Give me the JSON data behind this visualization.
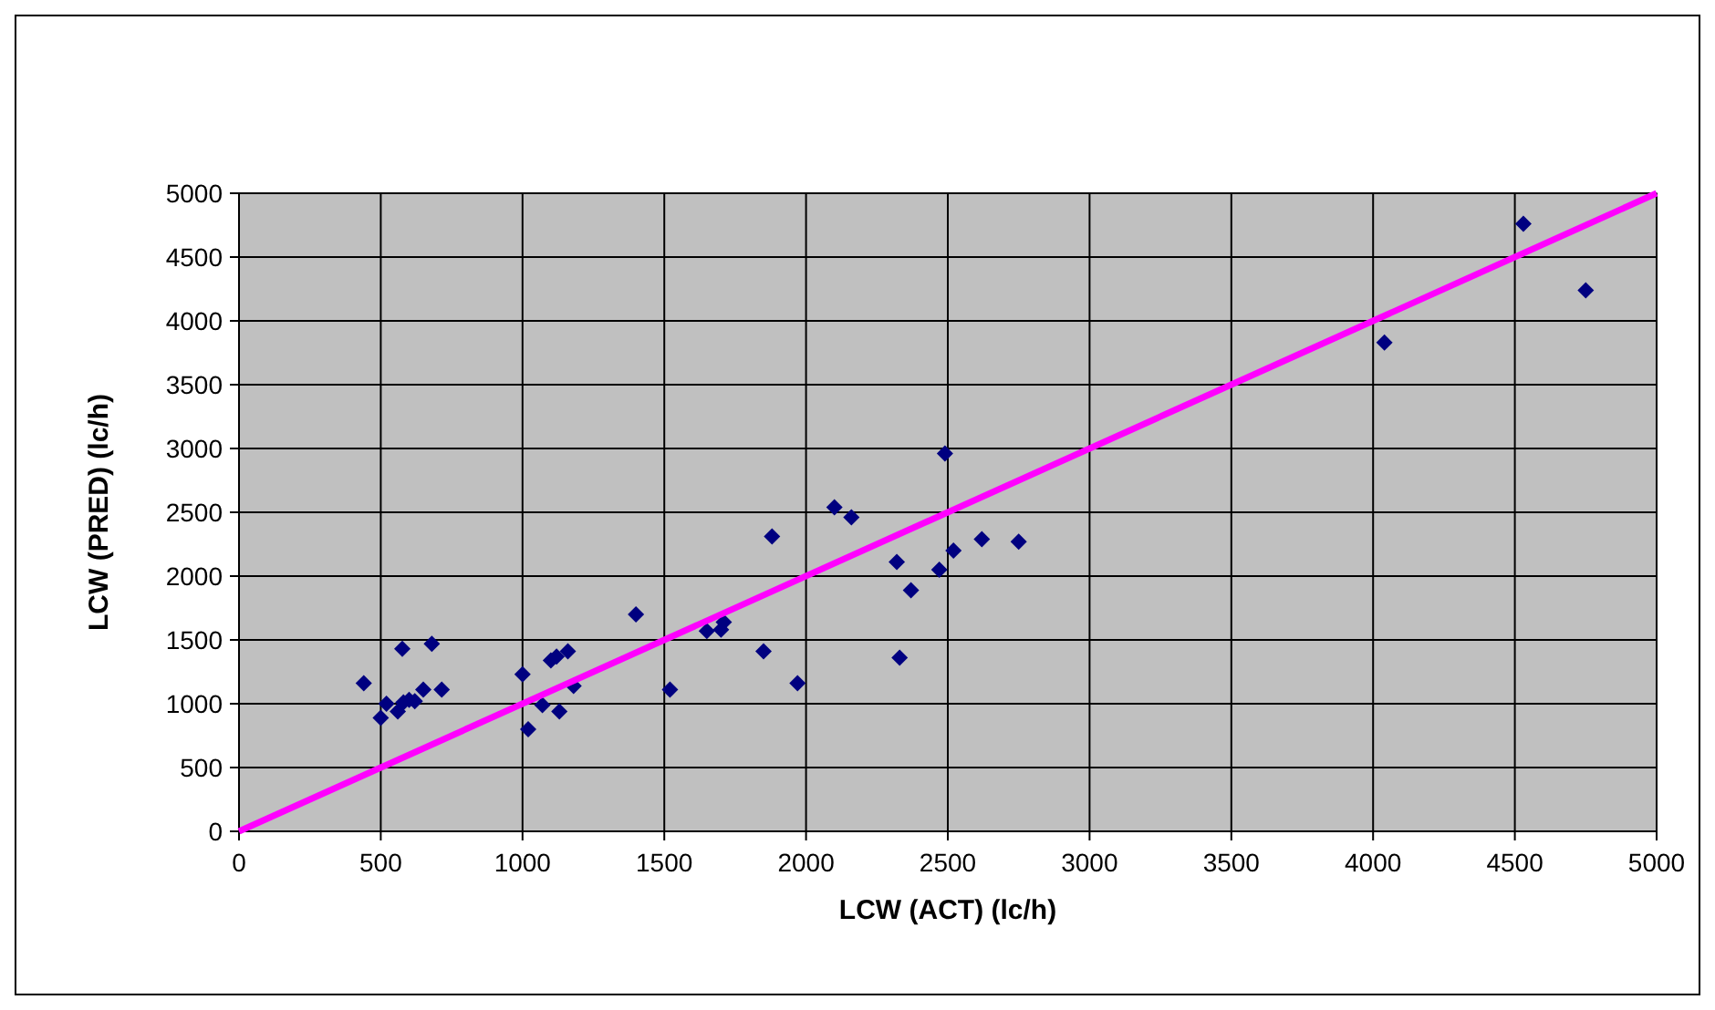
{
  "chart_data": {
    "type": "scatter",
    "xlabel": "LCW (ACT)   (lc/h)",
    "ylabel": "LCW (PRED)   (lc/h)",
    "xlim": [
      0,
      5000
    ],
    "xticks": [
      0,
      500,
      1000,
      1500,
      2000,
      2500,
      3000,
      3500,
      4000,
      4500,
      5000
    ],
    "ylim": [
      0,
      5000
    ],
    "yticks": [
      0,
      500,
      1000,
      1500,
      2000,
      2500,
      3000,
      3500,
      4000,
      4500,
      5000
    ],
    "grid": true,
    "marker": "diamond",
    "series": [
      {
        "color": "#000080",
        "x": [
          440,
          500,
          520,
          560,
          576,
          580,
          600,
          620,
          650,
          680,
          715,
          1000,
          1020,
          1070,
          1100,
          1120,
          1160,
          1130,
          1180,
          1400,
          1520,
          1650,
          1710,
          1700,
          1850,
          1880,
          1970,
          2100,
          2160,
          2320,
          2330,
          2370,
          2470,
          2490,
          2520,
          2620,
          2750,
          4040,
          4530,
          4750
        ],
        "values": [
          1160,
          890,
          1000,
          940,
          1430,
          1010,
          1030,
          1020,
          1110,
          1470,
          1110,
          1230,
          800,
          990,
          1340,
          1370,
          1410,
          940,
          1140,
          1700,
          1110,
          1570,
          1640,
          1580,
          1410,
          2310,
          1160,
          2540,
          2460,
          2110,
          1360,
          1890,
          2050,
          2960,
          2200,
          2290,
          2270,
          3830,
          4760,
          4240
        ]
      },
      {
        "type": "line",
        "color": "#ff00ff",
        "marker": "none",
        "x": [
          0,
          5000
        ],
        "values": [
          0,
          5000
        ]
      }
    ]
  }
}
